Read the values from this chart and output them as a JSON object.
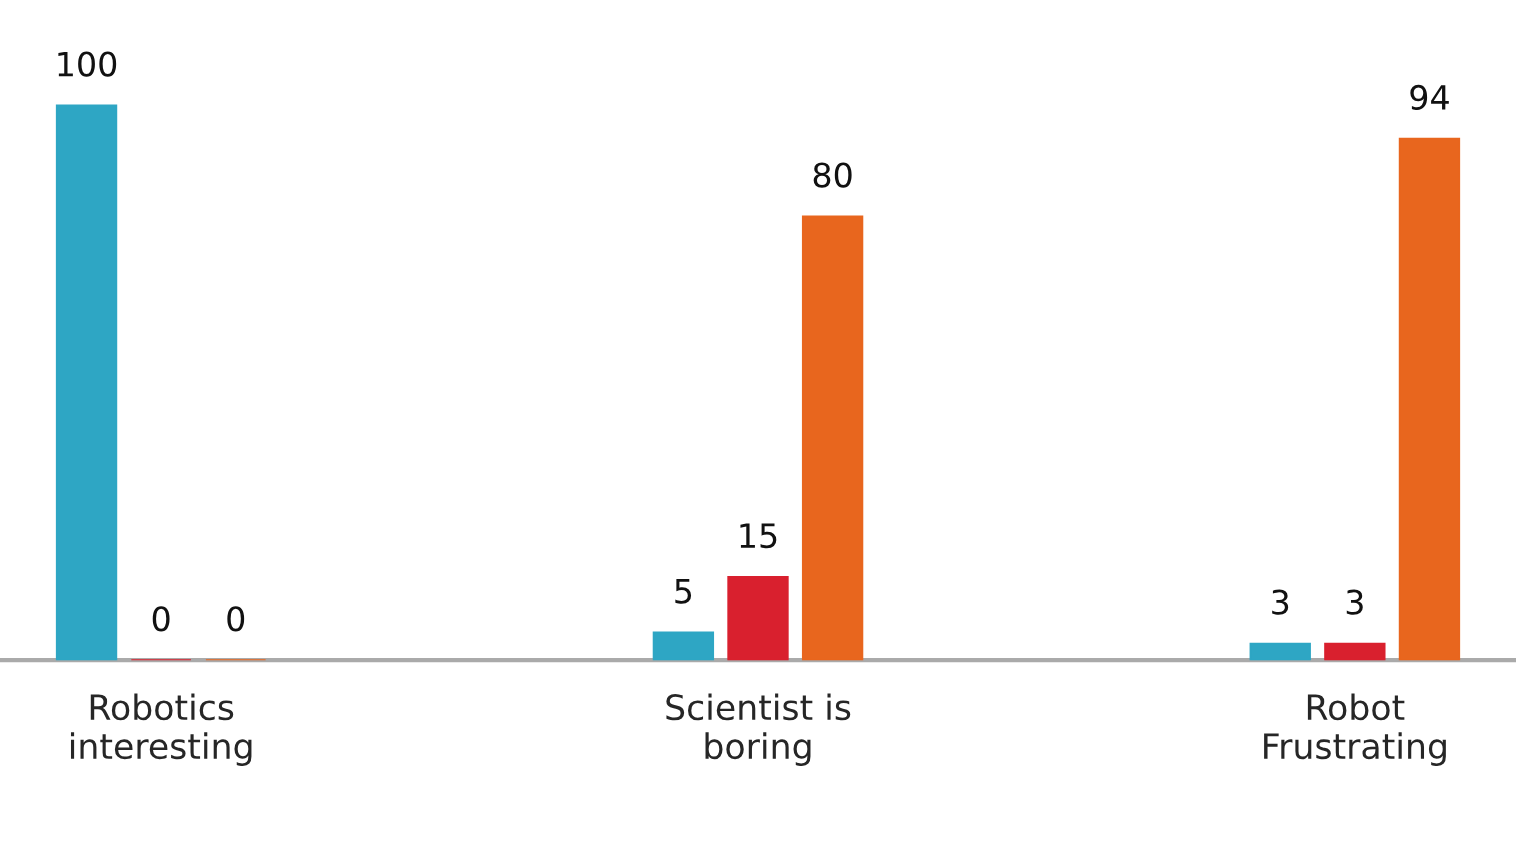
{
  "chart_data": {
    "type": "bar",
    "categories": [
      "Robotics\ninteresting",
      "Scientist is\nboring",
      "Robot\nFrustrating"
    ],
    "series": [
      {
        "color": "#2ea6c4",
        "values": [
          100,
          5,
          3
        ]
      },
      {
        "color": "#d9202e",
        "values": [
          0,
          15,
          3
        ]
      },
      {
        "color": "#e8661e",
        "values": [
          0,
          80,
          94
        ]
      }
    ],
    "data_labels": true,
    "grid": false,
    "legend": false
  }
}
